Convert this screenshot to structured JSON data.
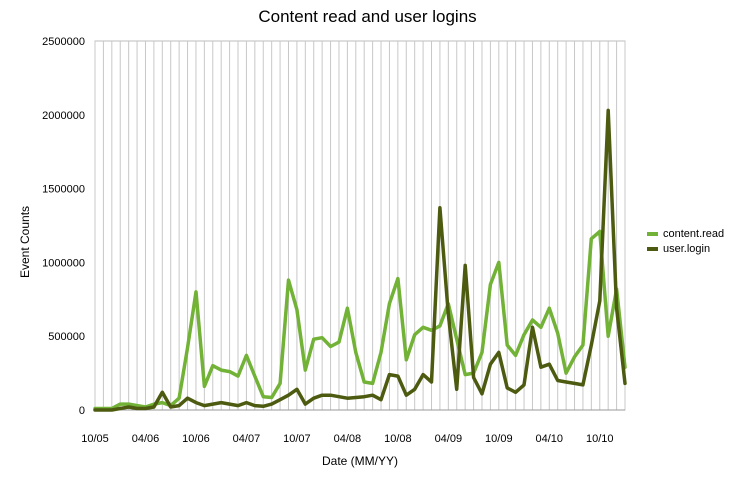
{
  "chart_data": {
    "type": "line",
    "title": "Content read and user logins",
    "xlabel": "Date (MM/YY)",
    "ylabel": "Event Counts",
    "ylim": [
      0,
      2500000
    ],
    "yticks": [
      "0",
      "500000",
      "1000000",
      "1500000",
      "2000000",
      "2500000"
    ],
    "xtick_labels": [
      {
        "index": 0,
        "label": "10/05"
      },
      {
        "index": 6,
        "label": "04/06"
      },
      {
        "index": 12,
        "label": "10/06"
      },
      {
        "index": 18,
        "label": "04/07"
      },
      {
        "index": 24,
        "label": "10/07"
      },
      {
        "index": 30,
        "label": "04/08"
      },
      {
        "index": 36,
        "label": "10/08"
      },
      {
        "index": 42,
        "label": "04/09"
      },
      {
        "index": 48,
        "label": "10/09"
      },
      {
        "index": 54,
        "label": "04/10"
      },
      {
        "index": 60,
        "label": "10/10"
      }
    ],
    "grid": "vertical",
    "legend": "right",
    "series": [
      {
        "name": "content.read",
        "color": "#72b236",
        "values": [
          10000,
          10000,
          10000,
          40000,
          40000,
          30000,
          20000,
          40000,
          50000,
          30000,
          80000,
          420000,
          800000,
          160000,
          300000,
          270000,
          260000,
          230000,
          370000,
          230000,
          90000,
          85000,
          180000,
          880000,
          680000,
          270000,
          480000,
          490000,
          430000,
          460000,
          690000,
          390000,
          190000,
          180000,
          390000,
          720000,
          890000,
          340000,
          510000,
          560000,
          540000,
          570000,
          720000,
          480000,
          240000,
          250000,
          390000,
          850000,
          1000000,
          440000,
          370000,
          510000,
          610000,
          560000,
          690000,
          520000,
          250000,
          360000,
          440000,
          1160000,
          1210000,
          500000,
          820000,
          290000
        ]
      },
      {
        "name": "user.login",
        "color": "#4c5b10",
        "values": [
          0,
          0,
          0,
          10000,
          20000,
          10000,
          10000,
          20000,
          120000,
          20000,
          30000,
          80000,
          50000,
          30000,
          40000,
          50000,
          40000,
          30000,
          50000,
          30000,
          25000,
          40000,
          70000,
          100000,
          140000,
          40000,
          80000,
          100000,
          100000,
          90000,
          80000,
          85000,
          90000,
          100000,
          70000,
          240000,
          230000,
          100000,
          140000,
          240000,
          190000,
          1370000,
          650000,
          140000,
          980000,
          220000,
          110000,
          310000,
          390000,
          150000,
          120000,
          170000,
          560000,
          290000,
          310000,
          200000,
          190000,
          180000,
          170000,
          440000,
          740000,
          2030000,
          690000,
          180000
        ]
      }
    ]
  }
}
